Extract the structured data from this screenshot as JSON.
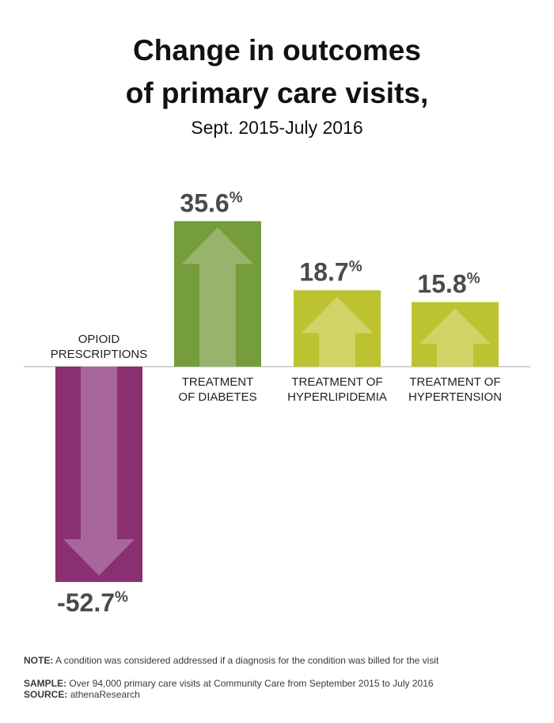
{
  "header": {
    "title_line1": "Change in outcomes",
    "title_line2": "of primary care visits,",
    "subtitle": "Sept. 2015-July 2016"
  },
  "chart_data": {
    "type": "bar",
    "title": "Change in outcomes of primary care visits,",
    "subtitle": "Sept. 2015-July 2016",
    "categories": [
      [
        "OPIOID",
        "PRESCRIPTIONS"
      ],
      [
        "TREATMENT",
        "OF DIABETES"
      ],
      [
        "TREATMENT OF",
        "HYPERLIPIDEMIA"
      ],
      [
        "TREATMENT OF",
        "HYPERTENSION"
      ]
    ],
    "values": [
      -52.7,
      35.6,
      18.7,
      15.8
    ],
    "value_labels": [
      "-52.7",
      "35.6",
      "18.7",
      "15.8"
    ],
    "unit": "%",
    "colors": [
      "#8b2f73",
      "#759d3b",
      "#bdc230",
      "#bdc230"
    ],
    "arrow_colors": [
      "#a8679a",
      "#98b36b",
      "#d0d467",
      "#d0d467"
    ],
    "baseline_color": "#aaaaaa",
    "grid": false,
    "legend": "none"
  },
  "notes": {
    "note_label": "NOTE:",
    "note_text": "A condition was considered addressed if a diagnosis for the condition was billed for the visit",
    "sample_label": "SAMPLE:",
    "sample_text": "Over 94,000 primary care visits at Community Care from September 2015 to July 2016",
    "source_label": "SOURCE:",
    "source_text": "athenaResearch"
  }
}
